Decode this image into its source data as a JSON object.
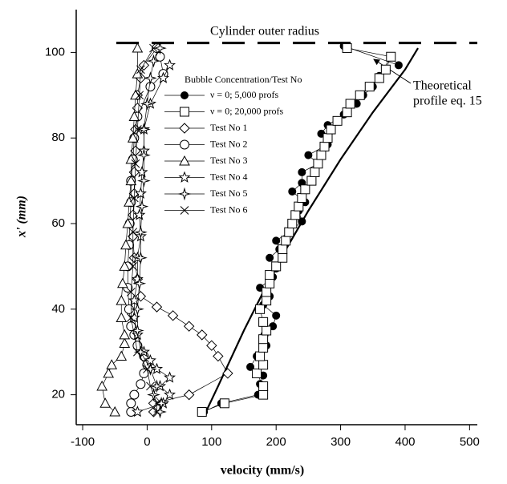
{
  "chart_data": {
    "type": "scatter-line",
    "xlabel": "velocity (mm/s)",
    "ylabel": "x' (mm)",
    "xlim": [
      -110,
      512
    ],
    "ylim": [
      13,
      110
    ],
    "xticks": [
      -100,
      0,
      100,
      200,
      300,
      400,
      500
    ],
    "yticks": [
      20,
      40,
      60,
      80,
      100
    ],
    "legend_title": "Bubble Concentration/Test No",
    "series": [
      {
        "name": "ν = 0; 5,000 profs",
        "color": "#000",
        "marker": "filled-circle",
        "x": [
          88,
          115,
          172,
          175,
          180,
          160,
          170,
          185,
          182,
          195,
          200,
          180,
          190,
          175,
          195,
          200,
          190,
          205,
          200,
          220,
          240,
          235,
          245,
          225,
          240,
          240,
          265,
          250,
          280,
          270,
          280,
          305,
          325,
          335,
          350,
          360,
          378,
          390,
          305
        ],
        "y": [
          16,
          18,
          20,
          22.5,
          24.5,
          26.5,
          29,
          31.5,
          34,
          36,
          38.5,
          41,
          43,
          45,
          47.5,
          49.5,
          52,
          54,
          56,
          58,
          60.5,
          63,
          65,
          67.5,
          69.5,
          72,
          74,
          76,
          78.5,
          81,
          83,
          85.5,
          88,
          90,
          92,
          94.5,
          99,
          97,
          101.5
        ]
      },
      {
        "name": "ν = 0;  20,000 profs",
        "color": "#000",
        "marker": "square",
        "x": [
          85,
          120,
          180,
          180,
          170,
          180,
          175,
          180,
          180,
          185,
          180,
          175,
          185,
          185,
          190,
          190,
          200,
          210,
          210,
          215,
          220,
          225,
          230,
          235,
          240,
          245,
          255,
          260,
          265,
          270,
          275,
          280,
          285,
          295,
          310,
          315,
          330,
          345,
          360,
          370,
          378,
          310
        ],
        "y": [
          16,
          18,
          20,
          22,
          25,
          27,
          29,
          31,
          33,
          35,
          37,
          40,
          42,
          44,
          46,
          48,
          50,
          52,
          54,
          56,
          58,
          60,
          62,
          64,
          66,
          68,
          70,
          72,
          74,
          76,
          78,
          80,
          82,
          84,
          86,
          88,
          90,
          92,
          94,
          96,
          99,
          101
        ]
      },
      {
        "name": "Test No 1",
        "color": "#000",
        "marker": "diamond",
        "x": [
          10,
          10,
          65,
          125,
          110,
          100,
          85,
          65,
          40,
          15,
          -10,
          -15,
          -20,
          -22,
          -22,
          -20,
          -20,
          -18,
          -18,
          -15,
          -15,
          -10,
          -5,
          15
        ],
        "y": [
          16,
          18,
          20,
          25,
          29,
          31.5,
          34,
          36,
          38.5,
          40.5,
          43,
          47,
          52,
          57,
          62,
          67,
          72,
          77,
          82,
          87,
          90,
          94,
          97,
          101
        ]
      },
      {
        "name": "Test No 2",
        "color": "#000",
        "marker": "circle",
        "x": [
          -25,
          -25,
          -20,
          -10,
          -5,
          0,
          -5,
          -15,
          -20,
          -25,
          -28,
          -30,
          -30,
          -28,
          -27,
          -25,
          -25,
          -22,
          -20,
          -15,
          5,
          25,
          20,
          15
        ],
        "y": [
          16,
          18,
          20,
          22.5,
          25,
          27,
          29,
          31.5,
          34,
          36,
          40,
          45,
          50,
          55,
          60,
          65,
          70,
          75,
          80,
          85,
          92,
          95,
          99,
          101
        ]
      },
      {
        "name": "Test No 3",
        "color": "#000",
        "marker": "triangle",
        "x": [
          -50,
          -65,
          -70,
          -60,
          -55,
          -40,
          -35,
          -35,
          -40,
          -40,
          -38,
          -35,
          -33,
          -30,
          -28,
          -25,
          -25,
          -22,
          -20,
          -18,
          -15,
          -15
        ],
        "y": [
          16,
          18,
          22,
          25,
          27,
          29,
          32,
          34,
          38,
          42,
          46,
          50,
          55,
          60,
          65,
          70,
          75,
          80,
          85,
          90,
          95,
          101
        ]
      },
      {
        "name": "Test No 4",
        "color": "#000",
        "marker": "star",
        "x": [
          -15,
          25,
          35,
          20,
          35,
          15,
          5,
          -5,
          -15,
          -20,
          -20,
          -15,
          -15,
          -10,
          -12,
          -10,
          -8,
          -5,
          -5,
          5,
          25,
          35
        ],
        "y": [
          16,
          18,
          20,
          22,
          24,
          26,
          28,
          30,
          34,
          38,
          42,
          47,
          52,
          57,
          62,
          67,
          72,
          77,
          82,
          88,
          94,
          97
        ]
      },
      {
        "name": "Test No 5",
        "color": "#000",
        "marker": "four-star",
        "x": [
          20,
          22,
          10,
          15,
          5,
          -10,
          -15,
          -15,
          -12,
          -10,
          -10,
          -8,
          -5,
          -5,
          -5,
          0,
          5,
          10,
          20
        ],
        "y": [
          16,
          18,
          20,
          22,
          26,
          30,
          35,
          40,
          46,
          52,
          58,
          64,
          70,
          76,
          82,
          88,
          94,
          98,
          101
        ]
      },
      {
        "name": "Test No 6",
        "color": "#000",
        "marker": "cross",
        "x": [
          15,
          15,
          5,
          0,
          -15,
          -25,
          -25,
          -22,
          -22,
          -20,
          -18,
          -15,
          -12,
          -10,
          10
        ],
        "y": [
          16,
          18,
          22,
          26,
          30,
          38,
          44,
          50,
          58,
          66,
          74,
          82,
          90,
          96,
          101
        ]
      }
    ],
    "theoretical_curve": {
      "label": [
        "Theoretical",
        "profile eq. 15"
      ],
      "x": [
        88,
        110,
        150,
        200,
        250,
        300,
        350,
        400,
        420
      ],
      "y": [
        15,
        22,
        35,
        50,
        63,
        75,
        86,
        96,
        101
      ]
    },
    "radius_line": {
      "label": "Cylinder outer radius",
      "y": 102.2
    }
  }
}
